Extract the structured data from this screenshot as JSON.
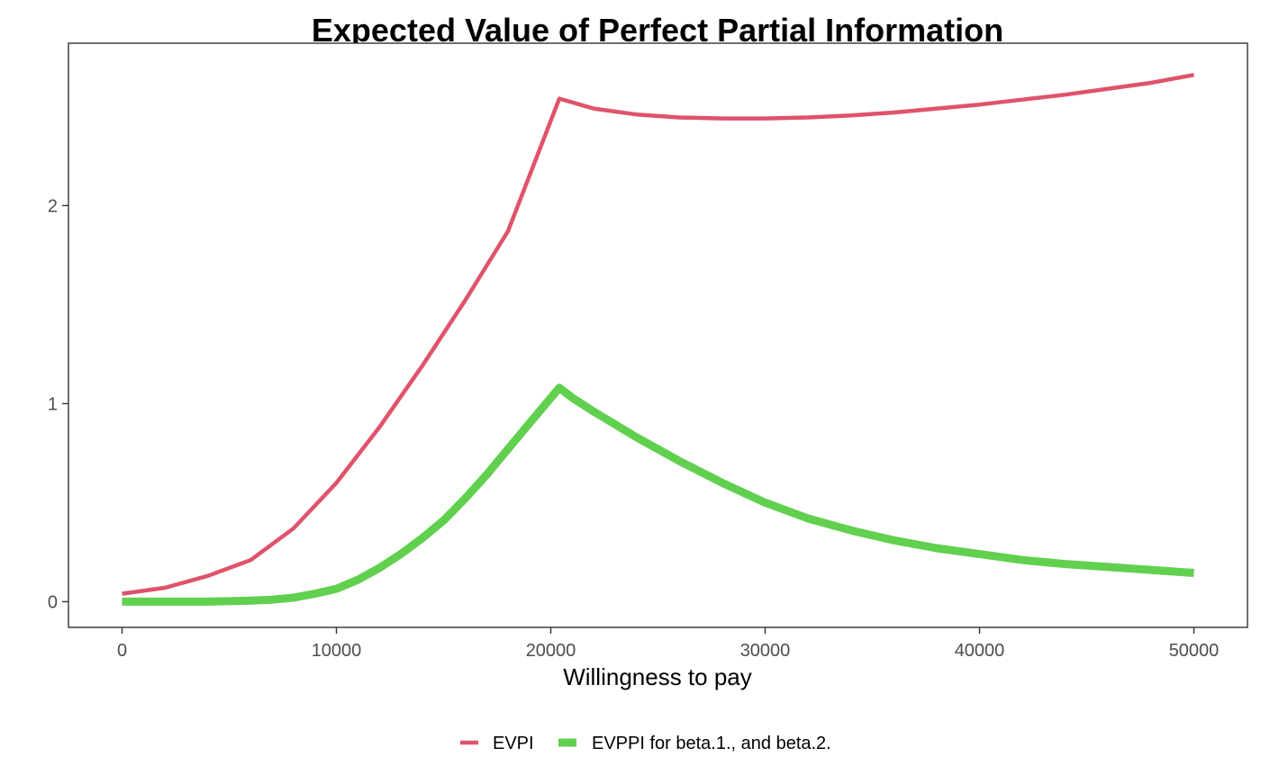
{
  "chart_data": {
    "type": "line",
    "title": "Expected Value of Perfect Partial Information",
    "xlabel": "Willingness to pay",
    "ylabel": "",
    "xlim": [
      -2500,
      52500
    ],
    "ylim": [
      -0.13,
      2.82
    ],
    "x_ticks": [
      0,
      10000,
      20000,
      30000,
      40000,
      50000
    ],
    "x_tick_labels": [
      "0",
      "10000",
      "20000",
      "30000",
      "40000",
      "50000"
    ],
    "y_ticks": [
      0,
      1,
      2
    ],
    "y_tick_labels": [
      "0",
      "1",
      "2"
    ],
    "grid": false,
    "legend_position": "bottom",
    "series": [
      {
        "name": "EVPI",
        "color": "#DF536B",
        "x": [
          0,
          2000,
          4000,
          6000,
          8000,
          10000,
          12000,
          14000,
          16000,
          18000,
          20400,
          22000,
          24000,
          26000,
          28000,
          30000,
          32000,
          34000,
          36000,
          38000,
          40000,
          42000,
          44000,
          46000,
          48000,
          50000
        ],
        "values": [
          0.04,
          0.07,
          0.13,
          0.21,
          0.37,
          0.6,
          0.88,
          1.19,
          1.52,
          1.87,
          2.54,
          2.49,
          2.46,
          2.445,
          2.44,
          2.44,
          2.445,
          2.455,
          2.47,
          2.49,
          2.51,
          2.535,
          2.56,
          2.59,
          2.62,
          2.66
        ]
      },
      {
        "name": "EVPPI for beta.1., and beta.2.",
        "color": "#61D04F",
        "x": [
          0,
          2000,
          4000,
          6000,
          7000,
          8000,
          9000,
          10000,
          11000,
          12000,
          13000,
          14000,
          15000,
          16000,
          17000,
          18000,
          19000,
          20400,
          21000,
          22000,
          24000,
          26000,
          28000,
          30000,
          32000,
          34000,
          36000,
          38000,
          40000,
          42000,
          44000,
          46000,
          48000,
          50000
        ],
        "values": [
          0,
          0,
          0,
          0.005,
          0.01,
          0.02,
          0.04,
          0.065,
          0.11,
          0.17,
          0.24,
          0.32,
          0.41,
          0.52,
          0.64,
          0.77,
          0.9,
          1.08,
          1.03,
          0.96,
          0.83,
          0.71,
          0.6,
          0.5,
          0.42,
          0.36,
          0.31,
          0.27,
          0.24,
          0.21,
          0.19,
          0.175,
          0.16,
          0.145
        ]
      }
    ]
  }
}
